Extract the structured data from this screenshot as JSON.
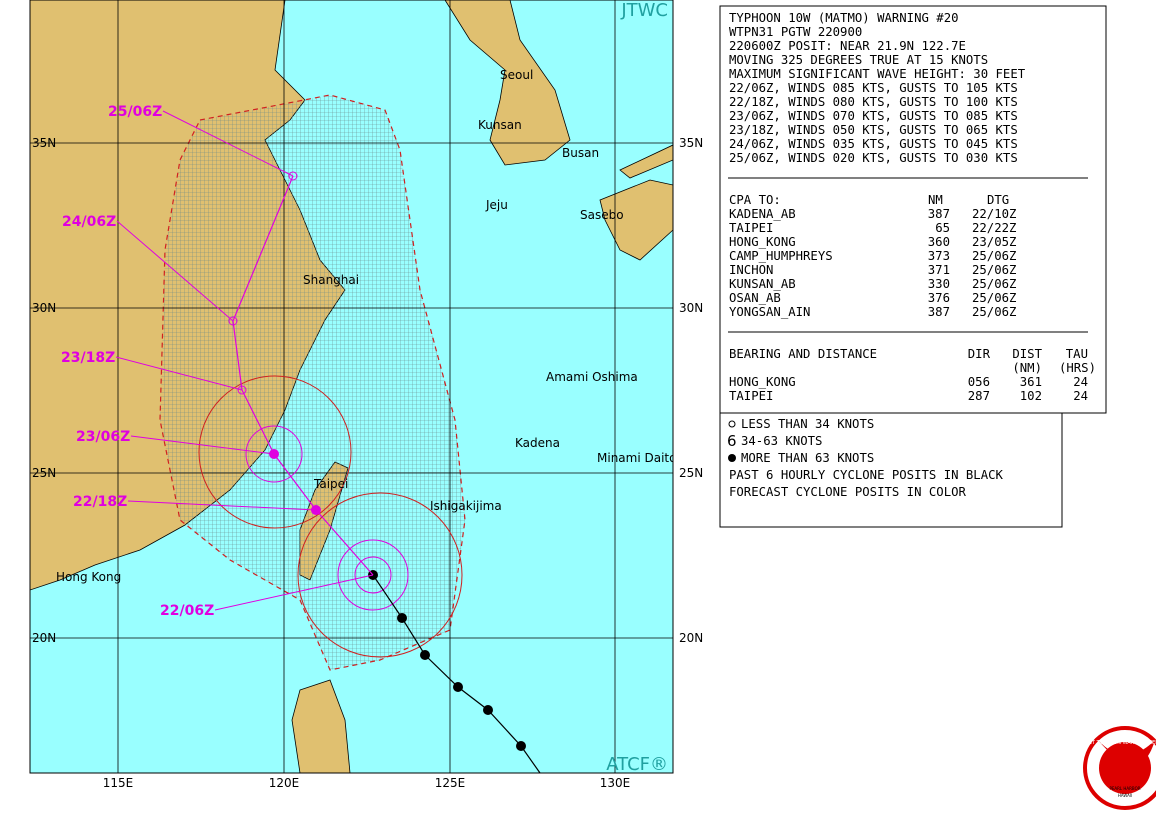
{
  "map": {
    "credit_top": "JTWC",
    "credit_bottom": "ATCF®",
    "lat_labels": [
      "35N",
      "30N",
      "25N",
      "20N"
    ],
    "lon_labels": [
      "115E",
      "120E",
      "125E",
      "130E"
    ],
    "places": [
      "Seoul",
      "Kunsan",
      "Busan",
      "Jeju",
      "Sasebo",
      "Shanghai",
      "Amami Oshima",
      "Kadena",
      "Minami Daito",
      "Taipei",
      "Ishigakijima",
      "Hong Kong"
    ],
    "forecast_times": [
      "25/06Z",
      "24/06Z",
      "23/18Z",
      "23/06Z",
      "22/18Z",
      "22/06Z"
    ]
  },
  "warning": {
    "lines": [
      "TYPHOON 10W (MATMO) WARNING #20",
      "WTPN31 PGTW 220900",
      "220600Z POSIT: NEAR 21.9N 122.7E",
      "MOVING 325 DEGREES TRUE AT 15 KNOTS",
      "MAXIMUM SIGNIFICANT WAVE HEIGHT: 30 FEET",
      "22/06Z, WINDS 085 KTS, GUSTS TO 105 KTS",
      "22/18Z, WINDS 080 KTS, GUSTS TO 100 KTS",
      "23/06Z, WINDS 070 KTS, GUSTS TO 085 KTS",
      "23/18Z, WINDS 050 KTS, GUSTS TO 065 KTS",
      "24/06Z, WINDS 035 KTS, GUSTS TO 045 KTS",
      "25/06Z, WINDS 020 KTS, GUSTS TO 030 KTS"
    ]
  },
  "cpa": {
    "header": [
      "CPA TO:",
      "NM",
      "DTG"
    ],
    "rows": [
      [
        "KADENA_AB",
        387,
        "22/10Z"
      ],
      [
        "TAIPEI",
        65,
        "22/22Z"
      ],
      [
        "HONG_KONG",
        360,
        "23/05Z"
      ],
      [
        "CAMP_HUMPHREYS",
        373,
        "25/06Z"
      ],
      [
        "INCHON",
        371,
        "25/06Z"
      ],
      [
        "KUNSAN_AB",
        330,
        "25/06Z"
      ],
      [
        "OSAN_AB",
        376,
        "25/06Z"
      ],
      [
        "YONGSAN_AIN",
        387,
        "25/06Z"
      ]
    ]
  },
  "bearing": {
    "header": [
      "BEARING AND DISTANCE",
      "DIR",
      "DIST",
      "TAU"
    ],
    "subheader": [
      "(NM)",
      "(HRS)"
    ],
    "rows": [
      [
        "HONG_KONG",
        "056",
        361,
        24
      ],
      [
        "TAIPEI",
        "287",
        102,
        24
      ]
    ]
  },
  "legend": [
    "LESS THAN 34 KNOTS",
    "34-63 KNOTS",
    "MORE THAN 63 KNOTS",
    "PAST 6 HOURLY CYCLONE POSITS IN BLACK",
    "FORECAST CYCLONE POSITS IN COLOR"
  ],
  "logo": [
    "JOINT TYPHOON WARNING CENTER",
    "PEARL HARBOR",
    "HAWAII"
  ]
}
